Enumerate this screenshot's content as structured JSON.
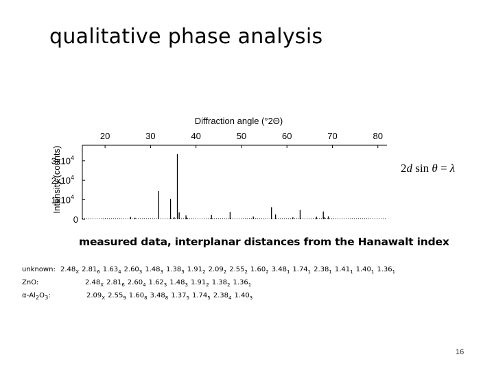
{
  "slide": {
    "title": "qualitative phase analysis",
    "caption": "measured data, interplanar distances from the Hanawalt index",
    "page_number": "16",
    "formula": {
      "lhs_2d": "2",
      "lhs_d": "d",
      "sin": " sin",
      "theta": "θ",
      "eq": " = ",
      "lambda": "λ"
    }
  },
  "rows": [
    {
      "label": "unknown:",
      "values": [
        [
          "2.48",
          "X"
        ],
        [
          "2.81",
          "6"
        ],
        [
          "1.63",
          "4"
        ],
        [
          "2.60",
          "3"
        ],
        [
          "1.48",
          "3"
        ],
        [
          "1.38",
          "3"
        ],
        [
          "1.91",
          "2"
        ],
        [
          "2.09",
          "2"
        ],
        [
          "2.55",
          "2"
        ],
        [
          "1.60",
          "2"
        ],
        [
          "3.48",
          "1"
        ],
        [
          "1.74",
          "1"
        ],
        [
          "2.38",
          "1"
        ],
        [
          "1.41",
          "1"
        ],
        [
          "1.40",
          "1"
        ],
        [
          "1.36",
          "1"
        ]
      ]
    },
    {
      "label": "ZnO:",
      "values": [
        [
          "2.48",
          "X"
        ],
        [
          "2.81",
          "6"
        ],
        [
          "2.60",
          "4"
        ],
        [
          "1.62",
          "3"
        ],
        [
          "1.48",
          "3"
        ],
        [
          "1.91",
          "2"
        ],
        [
          "1.38",
          "2"
        ],
        [
          "1.36",
          "1"
        ]
      ]
    },
    {
      "label_prefix": "α-Al",
      "label_sub1": "2",
      "label_mid": "O",
      "label_sub2": "3",
      "label_suffix": ":",
      "values": [
        [
          "2.09",
          "X"
        ],
        [
          "2.55",
          "9"
        ],
        [
          "1.60",
          "8"
        ],
        [
          "3.48",
          "8"
        ],
        [
          "1.37",
          "5"
        ],
        [
          "1.74",
          "5"
        ],
        [
          "2.38",
          "4"
        ],
        [
          "1.40",
          "3"
        ]
      ]
    }
  ],
  "chart_data": {
    "type": "line",
    "title": "",
    "xlabel": "Diffraction angle (°2Θ)",
    "ylabel": "Intensity (counts)",
    "xlim": [
      15,
      82
    ],
    "ylim": [
      0,
      38000
    ],
    "x_ticks": [
      20,
      30,
      40,
      50,
      60,
      70,
      80
    ],
    "x_tick_labels": [
      "20",
      "30",
      "40",
      "50",
      "60",
      "70",
      "80"
    ],
    "y_ticks": [
      0,
      10000,
      20000,
      30000
    ],
    "y_tick_labels": [
      "0",
      "1x10",
      "2x10",
      "3x10"
    ],
    "y_tick_exponent": "4",
    "x_axis_position": "top",
    "grid": false,
    "series": [
      {
        "x": [
          20.1,
          25.6,
          26.6,
          31.8,
          34.4,
          35.2,
          35.9,
          36.3,
          37.8,
          38.0,
          43.4,
          47.5,
          52.6,
          56.6,
          57.5,
          61.3,
          62.9,
          66.5,
          68.0,
          68.2,
          69.1
        ],
        "y": [
          400,
          1200,
          800,
          14500,
          10500,
          1000,
          33500,
          3500,
          2000,
          800,
          2200,
          3800,
          1400,
          6200,
          2500,
          1000,
          4800,
          1300,
          4000,
          1000,
          1500
        ]
      }
    ]
  }
}
